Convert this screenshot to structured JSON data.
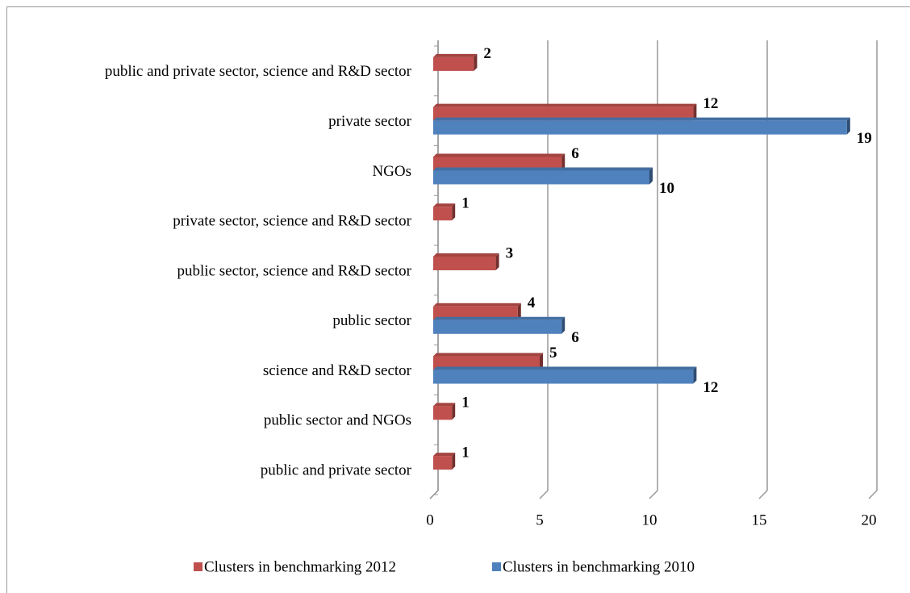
{
  "chart_data": {
    "type": "bar",
    "orientation": "horizontal",
    "style": "3d",
    "categories": [
      "public and private sector",
      "public sector and NGOs",
      "science and R&D sector",
      "public sector",
      "public sector, science and R&D sector",
      "private sector, science and R&D sector",
      "NGOs",
      "private sector",
      "public and private sector, science and R&D sector"
    ],
    "series": [
      {
        "name": "Clusters in benchmarking 2012",
        "color": "#c0504d",
        "values": [
          1,
          1,
          5,
          4,
          3,
          1,
          6,
          12,
          2
        ]
      },
      {
        "name": "Clusters in benchmarking 2010",
        "color": "#4f81bd",
        "values": [
          null,
          null,
          12,
          6,
          null,
          null,
          10,
          19,
          null
        ]
      }
    ],
    "xlim": [
      0,
      20
    ],
    "xticks": [
      0,
      5,
      10,
      15,
      20
    ],
    "grid": true,
    "legend": "bottom"
  }
}
